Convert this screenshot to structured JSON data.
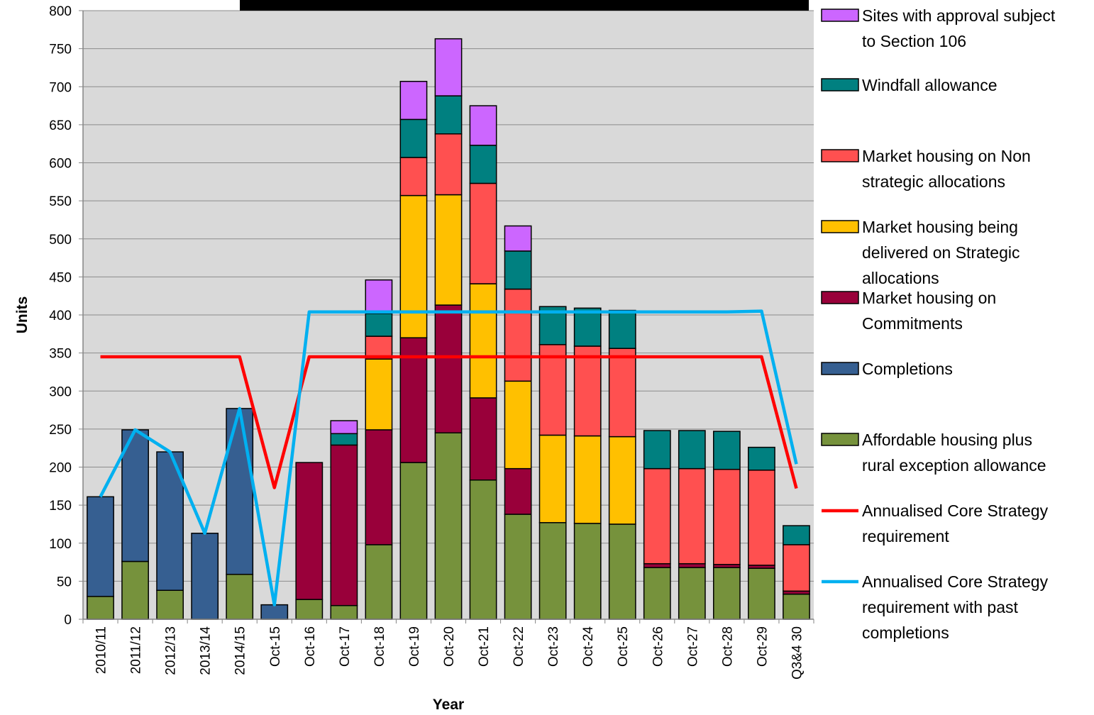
{
  "chart_data": {
    "type": "bar",
    "stacked": true,
    "title": "",
    "xlabel": "Year",
    "ylabel": "Units",
    "ylim": [
      0,
      800
    ],
    "ytick_step": 50,
    "grid": true,
    "legend_position": "right",
    "categories": [
      "2010/11",
      "2011/12",
      "2012/13",
      "2013/14",
      "2014/15",
      "Oct-15",
      "Oct-16",
      "Oct-17",
      "Oct-18",
      "Oct-19",
      "Oct-20",
      "Oct-21",
      "Oct-22",
      "Oct-23",
      "Oct-24",
      "Oct-25",
      "Oct-26",
      "Oct-27",
      "Oct-28",
      "Oct-29",
      "Q3&4 30"
    ],
    "series": [
      {
        "name": "Affordable housing plus rural exception allowance",
        "color": "#76923c",
        "values": [
          30,
          76,
          38,
          0,
          59,
          0,
          26,
          18,
          98,
          206,
          245,
          183,
          138,
          127,
          126,
          125,
          68,
          68,
          68,
          67,
          33
        ]
      },
      {
        "name": "Completions",
        "color": "#365f91",
        "values": [
          131,
          173,
          182,
          113,
          218,
          19,
          0,
          0,
          0,
          0,
          0,
          0,
          0,
          0,
          0,
          0,
          0,
          0,
          0,
          0,
          0
        ]
      },
      {
        "name": "Market housing on Commitments",
        "color": "#99003a",
        "values": [
          0,
          0,
          0,
          0,
          0,
          0,
          180,
          211,
          151,
          164,
          168,
          108,
          60,
          0,
          0,
          0,
          5,
          5,
          4,
          4,
          4
        ]
      },
      {
        "name": "Market housing being delivered on Strategic allocations",
        "color": "#ffc000",
        "values": [
          0,
          0,
          0,
          0,
          0,
          0,
          0,
          0,
          93,
          187,
          145,
          150,
          115,
          115,
          115,
          115,
          0,
          0,
          0,
          0,
          0
        ]
      },
      {
        "name": "Market housing on Non strategic allocations",
        "color": "#ff5050",
        "values": [
          0,
          0,
          0,
          0,
          0,
          0,
          0,
          0,
          30,
          50,
          80,
          132,
          121,
          119,
          118,
          116,
          125,
          125,
          125,
          125,
          61
        ]
      },
      {
        "name": "Windfall allowance",
        "color": "#008080",
        "values": [
          0,
          0,
          0,
          0,
          0,
          0,
          0,
          15,
          30,
          50,
          50,
          50,
          50,
          50,
          50,
          50,
          50,
          50,
          50,
          30,
          25
        ]
      },
      {
        "name": "Sites with approval subject to Section 106",
        "color": "#cc66ff",
        "values": [
          0,
          0,
          0,
          0,
          0,
          0,
          0,
          17,
          44,
          50,
          75,
          52,
          33,
          0,
          0,
          0,
          0,
          0,
          0,
          0,
          0
        ]
      }
    ],
    "lines": [
      {
        "name": "Annualised Core Strategy requirement",
        "color": "#ff0000",
        "values": [
          345,
          345,
          345,
          345,
          345,
          173,
          345,
          345,
          345,
          345,
          345,
          345,
          345,
          345,
          345,
          345,
          345,
          345,
          345,
          345,
          172
        ]
      },
      {
        "name": "Annualised Core Strategy requirement with past completions",
        "color": "#00b0f0",
        "values": [
          161,
          249,
          220,
          113,
          277,
          19,
          404,
          404,
          404,
          404,
          404,
          404,
          404,
          404,
          404,
          404,
          404,
          404,
          404,
          405,
          204
        ]
      }
    ],
    "legend": [
      {
        "lines": [
          "Sites with approval subject",
          "to Section 106"
        ],
        "kind": "box",
        "color": "#cc66ff"
      },
      {
        "lines": [
          "Windfall allowance"
        ],
        "kind": "box",
        "color": "#008080"
      },
      {
        "lines": [
          "Market housing on Non",
          "strategic allocations"
        ],
        "kind": "box",
        "color": "#ff5050"
      },
      {
        "lines": [
          "Market housing being",
          "delivered on Strategic",
          "allocations"
        ],
        "kind": "box",
        "color": "#ffc000"
      },
      {
        "lines": [
          "Market housing on",
          "Commitments"
        ],
        "kind": "box",
        "color": "#99003a"
      },
      {
        "lines": [
          "Completions"
        ],
        "kind": "box",
        "color": "#365f91"
      },
      {
        "lines": [
          "Affordable housing plus",
          "rural exception allowance"
        ],
        "kind": "box",
        "color": "#76923c"
      },
      {
        "lines": [
          "Annualised Core Strategy",
          "requirement"
        ],
        "kind": "line",
        "color": "#ff0000"
      },
      {
        "lines": [
          "Annualised Core Strategy",
          "requirement with past",
          "completions"
        ],
        "kind": "line",
        "color": "#00b0f0"
      }
    ]
  }
}
